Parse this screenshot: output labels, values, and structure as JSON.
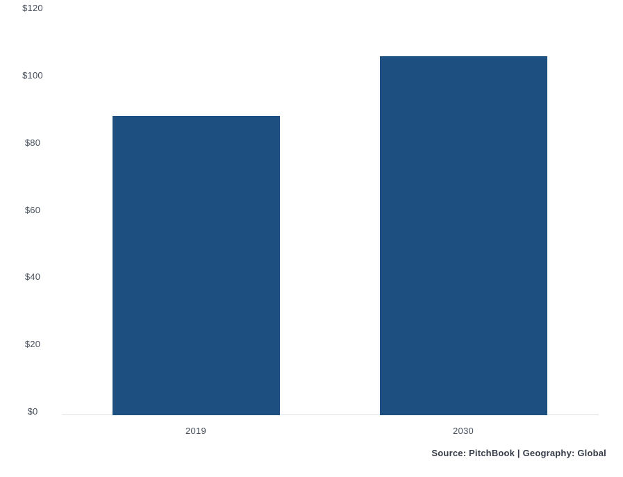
{
  "chart_data": {
    "type": "bar",
    "categories": [
      "2019",
      "2030"
    ],
    "values": [
      88.8,
      106.6
    ],
    "title": "",
    "xlabel": "",
    "ylabel": "",
    "ylim": [
      0,
      120
    ],
    "yticks": [
      0,
      20,
      40,
      60,
      80,
      100,
      120
    ],
    "ytick_labels": [
      "$0",
      "$20",
      "$40",
      "$60",
      "$80",
      "$100",
      "$120"
    ],
    "grid": false,
    "legend": false,
    "legend_position": "none",
    "bar_color": "#1D4F80",
    "source_note": "Source: PitchBook | Geography: Global"
  },
  "colors": {
    "bar": "#1D4F80",
    "axis_line": "#ECEEF0",
    "tick_text": "#464E5A",
    "source_text": "#343B47",
    "background": "#FFFFFF"
  }
}
